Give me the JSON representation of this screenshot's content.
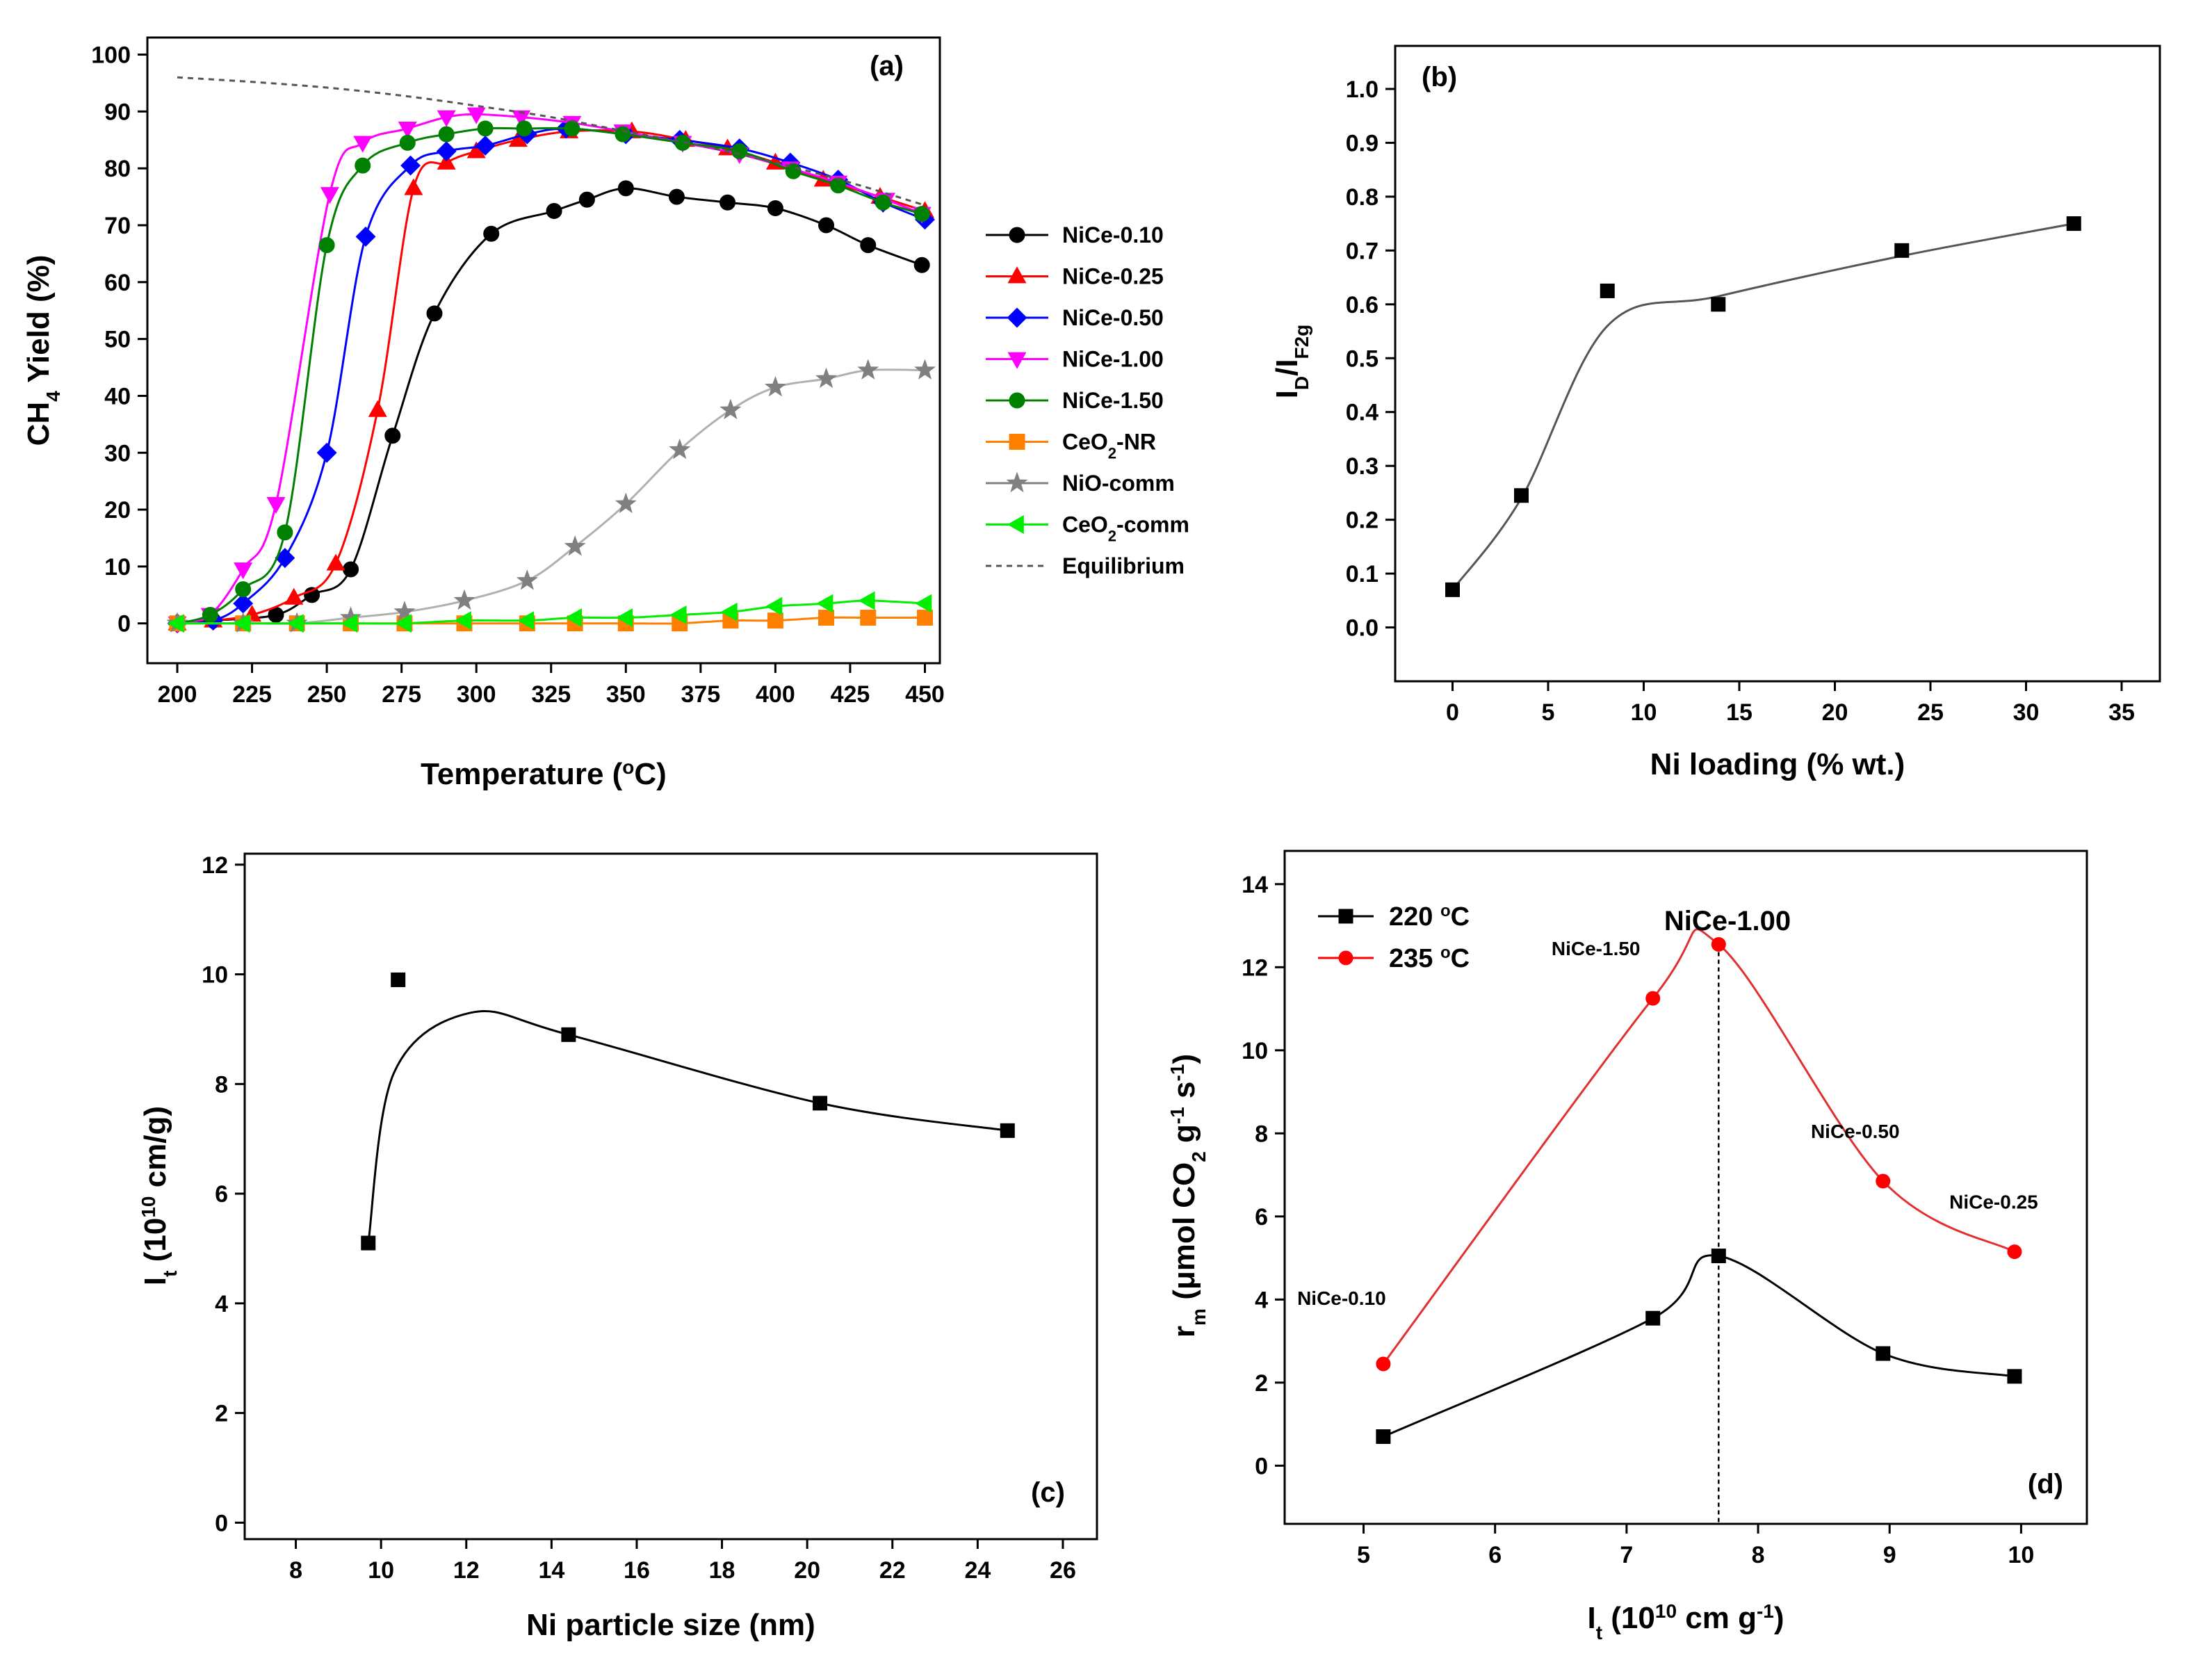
{
  "chart_data": [
    {
      "type": "line",
      "panel_label": "(a)",
      "xlabel_main": "Temperature (",
      "xlabel_sup": "o",
      "xlabel_end": "C)",
      "ylabel_main": "CH",
      "ylabel_sub": "4",
      "ylabel_end": " Yield (%)",
      "xlim": [
        190,
        455
      ],
      "ylim": [
        -7,
        103
      ],
      "xticks": [
        "200",
        "225",
        "250",
        "275",
        "300",
        "325",
        "350",
        "375",
        "400",
        "425",
        "450"
      ],
      "yticks": [
        "0",
        "10",
        "20",
        "30",
        "40",
        "50",
        "60",
        "70",
        "80",
        "90",
        "100"
      ],
      "legend_position": "right-outside",
      "series": [
        {
          "name": "NiCe-0.10",
          "label_main": "NiCe-0.10",
          "color": "#000000",
          "marker": "circle",
          "x": [
            200,
            212,
            233,
            245,
            258,
            272,
            286,
            305,
            326,
            337,
            350,
            367,
            384,
            400,
            417,
            431,
            449
          ],
          "y": [
            0,
            0.5,
            1.5,
            5,
            9.5,
            33,
            54.5,
            68.5,
            72.5,
            74.5,
            76.5,
            75,
            74,
            73,
            70,
            66.5,
            63
          ]
        },
        {
          "name": "NiCe-0.25",
          "label_main": "NiCe-0.25",
          "color": "#ff0000",
          "marker": "triangle-up",
          "x": [
            200,
            212,
            225,
            239,
            253,
            267,
            279,
            290,
            300,
            314,
            331,
            352,
            370,
            384,
            400,
            416,
            435,
            450
          ],
          "y": [
            0,
            0.5,
            1.5,
            4.5,
            10.5,
            37.5,
            76.5,
            81,
            83,
            85,
            86.5,
            86.5,
            85,
            83.5,
            81,
            78,
            75,
            72.5
          ]
        },
        {
          "name": "NiCe-0.50",
          "label_main": "NiCe-0.50",
          "color": "#0000ff",
          "marker": "diamond",
          "x": [
            200,
            212,
            222,
            236,
            250,
            263,
            278,
            290,
            303,
            317,
            330,
            350,
            368,
            388,
            405,
            421,
            436,
            450
          ],
          "y": [
            0,
            0.5,
            3.5,
            11.5,
            30,
            68,
            80.5,
            83,
            84,
            86,
            87,
            86,
            85,
            83.5,
            81,
            78,
            74,
            71
          ]
        },
        {
          "name": "NiCe-1.00",
          "label_main": "NiCe-1.00",
          "color": "#ff00ff",
          "marker": "triangle-down",
          "x": [
            200,
            211,
            222,
            233,
            251,
            262,
            277,
            290,
            300,
            315,
            332,
            349,
            369,
            388,
            405,
            421,
            437,
            449
          ],
          "y": [
            0,
            1.5,
            9.5,
            21,
            75.5,
            84.5,
            87,
            89,
            89.5,
            89,
            88,
            86.5,
            84.5,
            82.5,
            80,
            77.5,
            74.5,
            72
          ]
        },
        {
          "name": "NiCe-1.50",
          "label_main": "NiCe-1.50",
          "color": "#008000",
          "marker": "circle",
          "x": [
            200,
            211,
            222,
            236,
            250,
            262,
            277,
            290,
            303,
            316,
            332,
            349,
            369,
            388,
            406,
            421,
            436,
            449
          ],
          "y": [
            0,
            1.5,
            6,
            16,
            66.5,
            80.5,
            84.5,
            86,
            87,
            87,
            87,
            86,
            84.5,
            83,
            79.5,
            77,
            74,
            72
          ]
        },
        {
          "name": "CeO2-NR",
          "label_main": "CeO",
          "label_sub": "2",
          "label_end": "-NR",
          "color": "#ff8000",
          "marker": "square",
          "x": [
            200,
            222,
            240,
            258,
            276,
            296,
            317,
            333,
            350,
            368,
            385,
            400,
            417,
            431,
            450
          ],
          "y": [
            0,
            0,
            0,
            0,
            0,
            0,
            0,
            0,
            0,
            0,
            0.5,
            0.5,
            1,
            1,
            1
          ]
        },
        {
          "name": "NiO-comm",
          "label_main": "NiO-comm",
          "color": "#808080",
          "marker": "star",
          "x": [
            200,
            222,
            240,
            258,
            276,
            296,
            317,
            333,
            350,
            368,
            385,
            400,
            417,
            431,
            450
          ],
          "y": [
            0,
            0,
            0,
            1,
            2,
            4,
            7.5,
            13.5,
            21,
            30.5,
            37.5,
            41.5,
            43,
            44.5,
            44.5
          ]
        },
        {
          "name": "CeO2-comm",
          "label_main": "CeO",
          "label_sub": "2",
          "label_end": "-comm",
          "color": "#00ee00",
          "marker": "triangle-left",
          "x": [
            200,
            222,
            240,
            258,
            276,
            296,
            317,
            333,
            350,
            368,
            385,
            400,
            417,
            431,
            450
          ],
          "y": [
            0,
            0,
            0,
            0,
            0,
            0.5,
            0.5,
            1,
            1,
            1.5,
            2,
            3,
            3.5,
            4,
            3.5
          ]
        },
        {
          "name": "Equilibrium",
          "label_main": "Equilibrium",
          "color": "#555555",
          "marker": "none",
          "dashed": true,
          "x": [
            200,
            225,
            250,
            275,
            300,
            325,
            350,
            375,
            400,
            425,
            450
          ],
          "y": [
            96,
            95.2,
            94.2,
            92.8,
            91,
            89,
            86.5,
            84,
            81,
            77.5,
            73.5
          ]
        }
      ]
    },
    {
      "type": "scatter",
      "panel_label": "(b)",
      "xlabel": "Ni loading (% wt.)",
      "ylabel_main": "I",
      "ylabel_sub1": "D",
      "ylabel_mid": "/I",
      "ylabel_sub2": "F2g",
      "xlim": [
        -3,
        37
      ],
      "ylim": [
        -0.1,
        1.08
      ],
      "xticks": [
        "0",
        "5",
        "10",
        "15",
        "20",
        "25",
        "30",
        "35"
      ],
      "yticks": [
        "0.0",
        "0.1",
        "0.2",
        "0.3",
        "0.4",
        "0.5",
        "0.6",
        "0.7",
        "0.8",
        "0.9",
        "1.0"
      ],
      "series": [
        {
          "name": "Ni loading",
          "color": "#000000",
          "marker": "square",
          "x": [
            0,
            3.6,
            8.1,
            13.9,
            23.5,
            32.5
          ],
          "y": [
            0.07,
            0.245,
            0.625,
            0.6,
            0.7,
            0.75
          ]
        }
      ]
    },
    {
      "type": "scatter",
      "panel_label": "(c)",
      "xlabel": "Ni particle size (nm)",
      "ylabel_main": "I",
      "ylabel_sub": "t",
      "ylabel_open": " (10",
      "ylabel_sup": "10",
      "ylabel_end": " cm/g)",
      "xlim": [
        6.8,
        26.8
      ],
      "ylim": [
        -0.3,
        12.2
      ],
      "xticks": [
        "8",
        "10",
        "12",
        "14",
        "16",
        "18",
        "20",
        "22",
        "24",
        "26"
      ],
      "yticks": [
        "0",
        "2",
        "4",
        "6",
        "8",
        "10",
        "12"
      ],
      "series": [
        {
          "name": "It",
          "color": "#000000",
          "marker": "square",
          "x": [
            9.7,
            10.4,
            14.4,
            20.3,
            24.7
          ],
          "y": [
            5.1,
            9.9,
            8.9,
            7.65,
            7.15
          ]
        }
      ]
    },
    {
      "type": "scatter",
      "panel_label": "(d)",
      "title": "NiCe-1.00",
      "xlabel_main": "I",
      "xlabel_sub": "t",
      "xlabel_open": " (10",
      "xlabel_sup": "10",
      "xlabel_end": " cm g",
      "xlabel_sup2": "-1",
      "xlabel_close": ")",
      "ylabel_main": "r",
      "ylabel_sub": "m",
      "ylabel_open": " (μmol CO",
      "ylabel_sub2": "2",
      "ylabel_mid": " g",
      "ylabel_sup1": "-1",
      "ylabel_mid2": " s",
      "ylabel_sup2": "-1",
      "ylabel_close": ")",
      "xlim": [
        4.4,
        10.5
      ],
      "ylim": [
        -1.4,
        14.8
      ],
      "xticks": [
        "5",
        "6",
        "7",
        "8",
        "9",
        "10"
      ],
      "yticks": [
        "0",
        "2",
        "4",
        "6",
        "8",
        "10",
        "12",
        "14"
      ],
      "vline_x": 7.7,
      "annotations": [
        "NiCe-0.10",
        "NiCe-1.50",
        "NiCe-0.50",
        "NiCe-0.25"
      ],
      "legend_position": "top-left",
      "series": [
        {
          "name": "220 °C",
          "label_main": "220 ",
          "label_sup": "o",
          "label_end": "C",
          "color": "#000000",
          "marker": "square",
          "x": [
            5.15,
            7.2,
            7.7,
            8.95,
            9.95
          ],
          "y": [
            0.7,
            3.55,
            5.05,
            2.7,
            2.15
          ]
        },
        {
          "name": "235 °C",
          "label_main": "235 ",
          "label_sup": "o",
          "label_end": "C",
          "color": "#ff0000",
          "marker": "circle",
          "x": [
            5.15,
            7.2,
            7.7,
            8.95,
            9.95
          ],
          "y": [
            2.45,
            11.25,
            12.55,
            6.85,
            5.15
          ]
        }
      ]
    }
  ]
}
